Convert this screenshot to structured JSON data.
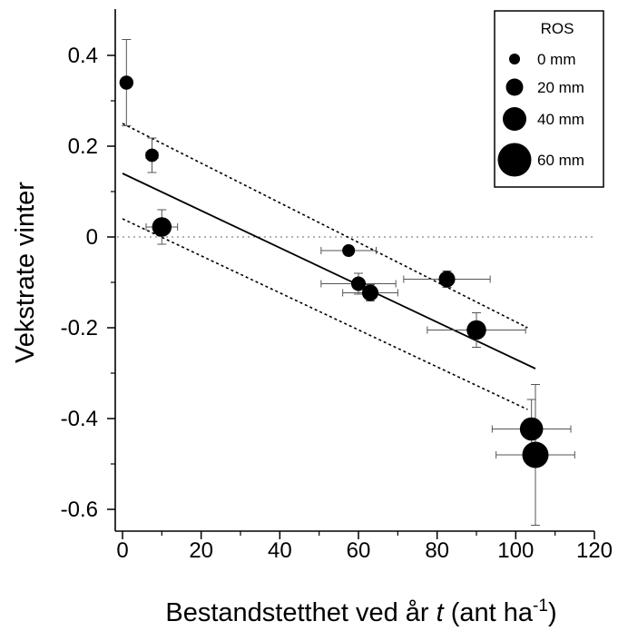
{
  "chart_data": {
    "type": "scatter",
    "xlabel": "Bestandstetthet ved år",
    "xlabel_var": "t",
    "xlabel_unit": "(ant ha",
    "xlabel_unit_sup": "-1",
    "xlabel_unit_close": ")",
    "ylabel": "Vekstrate vinter",
    "xlim": [
      -3,
      127
    ],
    "ylim": [
      -0.66,
      0.5
    ],
    "x_ticks": [
      0,
      20,
      40,
      60,
      80,
      100,
      120
    ],
    "x_tick_labels": [
      "0",
      "20",
      "40",
      "60",
      "80",
      "100",
      "120"
    ],
    "y_ticks": [
      0.4,
      0.2,
      0,
      -0.2,
      -0.4,
      -0.6
    ],
    "y_tick_labels": [
      "0.4",
      "0.2",
      "0",
      "-0.2",
      "-0.4",
      "-0.6"
    ],
    "reference_line": {
      "y": 0,
      "style": "dotted"
    },
    "regression": {
      "x0": 0,
      "y0": 0.14,
      "x1": 105,
      "y1": -0.29
    },
    "confidence_band": {
      "upper": [
        [
          0,
          0.25
        ],
        [
          103,
          -0.2
        ]
      ],
      "lower": [
        [
          0,
          0.04
        ],
        [
          103,
          -0.38
        ]
      ]
    },
    "points": [
      {
        "x": 1,
        "y": 0.34,
        "xerr": 0,
        "yerr": 0.095,
        "ros": 10
      },
      {
        "x": 7.5,
        "y": 0.18,
        "xerr": 1.5,
        "yerr": 0.038,
        "ros": 8
      },
      {
        "x": 10,
        "y": 0.022,
        "xerr": 4,
        "yerr": 0.038,
        "ros": 28
      },
      {
        "x": 57.5,
        "y": -0.03,
        "xerr": 7,
        "yerr": 0,
        "ros": 6
      },
      {
        "x": 60,
        "y": -0.103,
        "xerr": 9.5,
        "yerr": 0.023,
        "ros": 12
      },
      {
        "x": 63,
        "y": -0.123,
        "xerr": 7,
        "yerr": 0.018,
        "ros": 18
      },
      {
        "x": 82.5,
        "y": -0.093,
        "xerr": 11,
        "yerr": 0.018,
        "ros": 18
      },
      {
        "x": 90,
        "y": -0.205,
        "xerr": 12.5,
        "yerr": 0.038,
        "ros": 28
      },
      {
        "x": 104,
        "y": -0.423,
        "xerr": 10,
        "yerr": 0.065,
        "ros": 40
      },
      {
        "x": 105,
        "y": -0.48,
        "xerr": 10,
        "yerr": 0.155,
        "ros": 50
      }
    ],
    "legend": {
      "title": "ROS",
      "position": "top-right",
      "entries": [
        {
          "label": "0 mm",
          "ros": 0
        },
        {
          "label": "20 mm",
          "ros": 20
        },
        {
          "label": "40 mm",
          "ros": 40
        },
        {
          "label": "60 mm",
          "ros": 60
        }
      ]
    },
    "grid": false
  }
}
